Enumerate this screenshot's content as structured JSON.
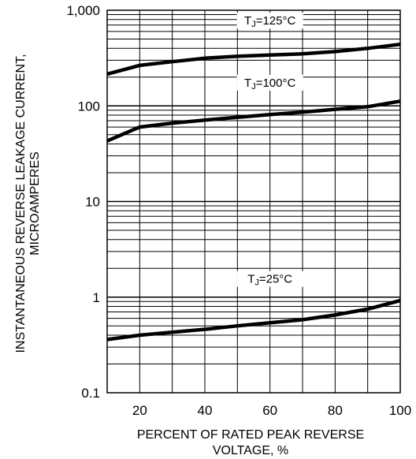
{
  "chart_data": {
    "type": "line",
    "title": "",
    "xlabel": [
      "PERCENT OF RATED PEAK REVERSE",
      "VOLTAGE, %"
    ],
    "ylabel": [
      "INSTANTANEOUS REVERSE LEAKAGE CURRENT,",
      "MICROAMPERES"
    ],
    "xlim": [
      10,
      100
    ],
    "ylim": [
      0.1,
      1000
    ],
    "yscale": "log",
    "grid": true,
    "x_ticks": [
      20,
      40,
      60,
      80,
      100
    ],
    "x_tick_labels": [
      "20",
      "40",
      "60",
      "80",
      "100"
    ],
    "y_ticks": [
      0.1,
      1,
      10,
      100,
      1000
    ],
    "y_tick_labels": [
      "0.1",
      "1",
      "10",
      "100",
      "1,000"
    ],
    "series": [
      {
        "name": "TJ=125°C",
        "label_main": "T",
        "label_sub": "J",
        "label_rest": "=125°C",
        "label_at": [
          60,
          780
        ],
        "x": [
          10,
          20,
          30,
          40,
          50,
          60,
          70,
          80,
          90,
          100
        ],
        "values": [
          215,
          265,
          290,
          315,
          330,
          340,
          350,
          370,
          400,
          440
        ]
      },
      {
        "name": "TJ=100°C",
        "label_main": "T",
        "label_sub": "J",
        "label_rest": "=100°C",
        "label_at": [
          60,
          175
        ],
        "x": [
          10,
          20,
          30,
          40,
          50,
          60,
          70,
          80,
          90,
          100
        ],
        "values": [
          43,
          60,
          66,
          71,
          76,
          81,
          86,
          92,
          98,
          112
        ]
      },
      {
        "name": "TJ=25°C",
        "label_main": "T",
        "label_sub": "J",
        "label_rest": "=25°C",
        "label_at": [
          60,
          1.55
        ],
        "x": [
          10,
          20,
          30,
          40,
          50,
          60,
          70,
          80,
          90,
          100
        ],
        "values": [
          0.36,
          0.4,
          0.43,
          0.46,
          0.5,
          0.54,
          0.58,
          0.65,
          0.75,
          0.92
        ]
      }
    ]
  },
  "colors": {
    "line": "#000000",
    "grid": "#000000",
    "background": "#ffffff"
  }
}
